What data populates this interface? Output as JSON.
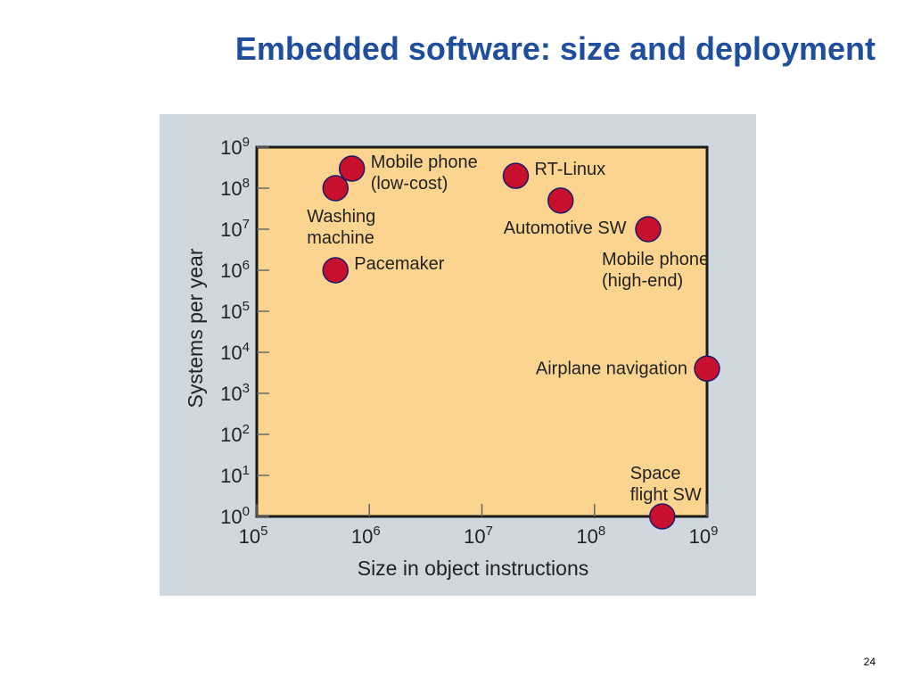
{
  "slide": {
    "title": "Embedded software: size and deployment",
    "page_number": "24"
  },
  "colors": {
    "title": "#1f4e9c",
    "panel_background": "#cfd8df",
    "plot_background": "#fbd58f",
    "marker_fill": "#c8102e",
    "marker_stroke": "#1a1a6b"
  },
  "chart_data": {
    "type": "scatter",
    "xscale": "log",
    "yscale": "log",
    "xlabel": "Size in object instructions",
    "ylabel": "Systems per year",
    "xlim": [
      100000,
      1000000000
    ],
    "ylim": [
      1,
      1000000000
    ],
    "x_ticks": [
      {
        "base": "10",
        "exp": "5"
      },
      {
        "base": "10",
        "exp": "6"
      },
      {
        "base": "10",
        "exp": "7"
      },
      {
        "base": "10",
        "exp": "8"
      },
      {
        "base": "10",
        "exp": "9"
      }
    ],
    "y_ticks": [
      {
        "base": "10",
        "exp": "0"
      },
      {
        "base": "10",
        "exp": "1"
      },
      {
        "base": "10",
        "exp": "2"
      },
      {
        "base": "10",
        "exp": "3"
      },
      {
        "base": "10",
        "exp": "4"
      },
      {
        "base": "10",
        "exp": "5"
      },
      {
        "base": "10",
        "exp": "6"
      },
      {
        "base": "10",
        "exp": "7"
      },
      {
        "base": "10",
        "exp": "8"
      },
      {
        "base": "10",
        "exp": "9"
      }
    ],
    "grid": false,
    "points": [
      {
        "label": "Mobile phone\n(low-cost)",
        "x": 700000,
        "y": 300000000,
        "label_pos": "right"
      },
      {
        "label": "Washing\nmachine",
        "x": 500000,
        "y": 100000000,
        "label_pos": "below"
      },
      {
        "label": "Pacemaker",
        "x": 500000,
        "y": 1000000,
        "label_pos": "right"
      },
      {
        "label": "RT-Linux",
        "x": 20000000,
        "y": 200000000,
        "label_pos": "right"
      },
      {
        "label": "Automotive SW",
        "x": 50000000,
        "y": 50000000,
        "label_pos": "below"
      },
      {
        "label": "Mobile phone\n(high-end)",
        "x": 300000000,
        "y": 10000000,
        "label_pos": "below"
      },
      {
        "label": "Airplane navigation",
        "x": 1000000000,
        "y": 4000,
        "label_pos": "left"
      },
      {
        "label": "Space\nflight SW",
        "x": 400000000,
        "y": 1,
        "label_pos": "above"
      }
    ]
  }
}
